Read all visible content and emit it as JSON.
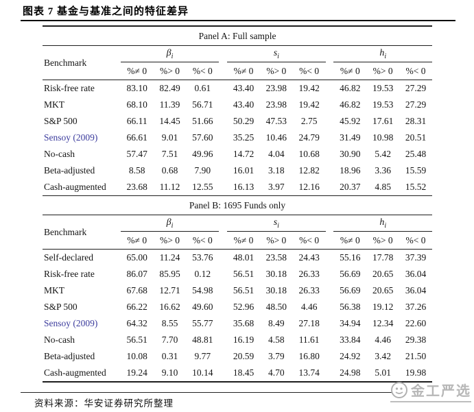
{
  "title": "图表 7 基金与基准之间的特征差异",
  "panels": [
    {
      "caption": "Panel A: Full sample",
      "benchmark_header": "Benchmark",
      "groups": [
        {
          "symbol": "β",
          "sub": "i"
        },
        {
          "symbol": "s",
          "sub": "i"
        },
        {
          "symbol": "h",
          "sub": "i"
        }
      ],
      "subheaders": [
        "%≠ 0",
        "%> 0",
        "%< 0",
        "%≠ 0",
        "%> 0",
        "%< 0",
        "%≠ 0",
        "%> 0",
        "%< 0"
      ],
      "rows": [
        {
          "label": "Risk-free rate",
          "link": false,
          "values": [
            "83.10",
            "82.49",
            "0.61",
            "43.40",
            "23.98",
            "19.42",
            "46.82",
            "19.53",
            "27.29"
          ]
        },
        {
          "label": "MKT",
          "link": false,
          "values": [
            "68.10",
            "11.39",
            "56.71",
            "43.40",
            "23.98",
            "19.42",
            "46.82",
            "19.53",
            "27.29"
          ]
        },
        {
          "label": "S&P 500",
          "link": false,
          "values": [
            "66.11",
            "14.45",
            "51.66",
            "50.29",
            "47.53",
            "2.75",
            "45.92",
            "17.61",
            "28.31"
          ]
        },
        {
          "label": "Sensoy (2009)",
          "link": true,
          "values": [
            "66.61",
            "9.01",
            "57.60",
            "35.25",
            "10.46",
            "24.79",
            "31.49",
            "10.98",
            "20.51"
          ]
        },
        {
          "label": "No-cash",
          "link": false,
          "values": [
            "57.47",
            "7.51",
            "49.96",
            "14.72",
            "4.04",
            "10.68",
            "30.90",
            "5.42",
            "25.48"
          ]
        },
        {
          "label": "Beta-adjusted",
          "link": false,
          "values": [
            "8.58",
            "0.68",
            "7.90",
            "16.01",
            "3.18",
            "12.82",
            "18.96",
            "3.36",
            "15.59"
          ]
        },
        {
          "label": "Cash-augmented",
          "link": false,
          "values": [
            "23.68",
            "11.12",
            "12.55",
            "16.13",
            "3.97",
            "12.16",
            "20.37",
            "4.85",
            "15.52"
          ]
        }
      ]
    },
    {
      "caption": "Panel B: 1695 Funds only",
      "benchmark_header": "Benchmark",
      "groups": [
        {
          "symbol": "β",
          "sub": "i"
        },
        {
          "symbol": "s",
          "sub": "i"
        },
        {
          "symbol": "h",
          "sub": "i"
        }
      ],
      "subheaders": [
        "%≠ 0",
        "%> 0",
        "%< 0",
        "%≠ 0",
        "%> 0",
        "%< 0",
        "%≠ 0",
        "%> 0",
        "%< 0"
      ],
      "rows": [
        {
          "label": "Self-declared",
          "link": false,
          "values": [
            "65.00",
            "11.24",
            "53.76",
            "48.01",
            "23.58",
            "24.43",
            "55.16",
            "17.78",
            "37.39"
          ]
        },
        {
          "label": "Risk-free rate",
          "link": false,
          "values": [
            "86.07",
            "85.95",
            "0.12",
            "56.51",
            "30.18",
            "26.33",
            "56.69",
            "20.65",
            "36.04"
          ]
        },
        {
          "label": "MKT",
          "link": false,
          "values": [
            "67.68",
            "12.71",
            "54.98",
            "56.51",
            "30.18",
            "26.33",
            "56.69",
            "20.65",
            "36.04"
          ]
        },
        {
          "label": "S&P 500",
          "link": false,
          "values": [
            "66.22",
            "16.62",
            "49.60",
            "52.96",
            "48.50",
            "4.46",
            "56.38",
            "19.12",
            "37.26"
          ]
        },
        {
          "label": "Sensoy (2009)",
          "link": true,
          "values": [
            "64.32",
            "8.55",
            "55.77",
            "35.68",
            "8.49",
            "27.18",
            "34.94",
            "12.34",
            "22.60"
          ]
        },
        {
          "label": "No-cash",
          "link": false,
          "values": [
            "56.51",
            "7.70",
            "48.81",
            "16.19",
            "4.58",
            "11.61",
            "33.84",
            "4.46",
            "29.38"
          ]
        },
        {
          "label": "Beta-adjusted",
          "link": false,
          "values": [
            "10.08",
            "0.31",
            "9.77",
            "20.59",
            "3.79",
            "16.80",
            "24.92",
            "3.42",
            "21.50"
          ]
        },
        {
          "label": "Cash-augmented",
          "link": false,
          "values": [
            "19.24",
            "9.10",
            "10.14",
            "18.45",
            "4.70",
            "13.74",
            "24.98",
            "5.01",
            "19.98"
          ]
        }
      ]
    }
  ],
  "footer": {
    "source_label": "资料来源：",
    "source_text": "华安证券研究所整理"
  },
  "watermark": {
    "text": "金工严选"
  },
  "colors": {
    "link": "#3a3a9c",
    "text": "#141414",
    "rule": "#1c1c1c",
    "watermark": "#b7b7b7"
  }
}
